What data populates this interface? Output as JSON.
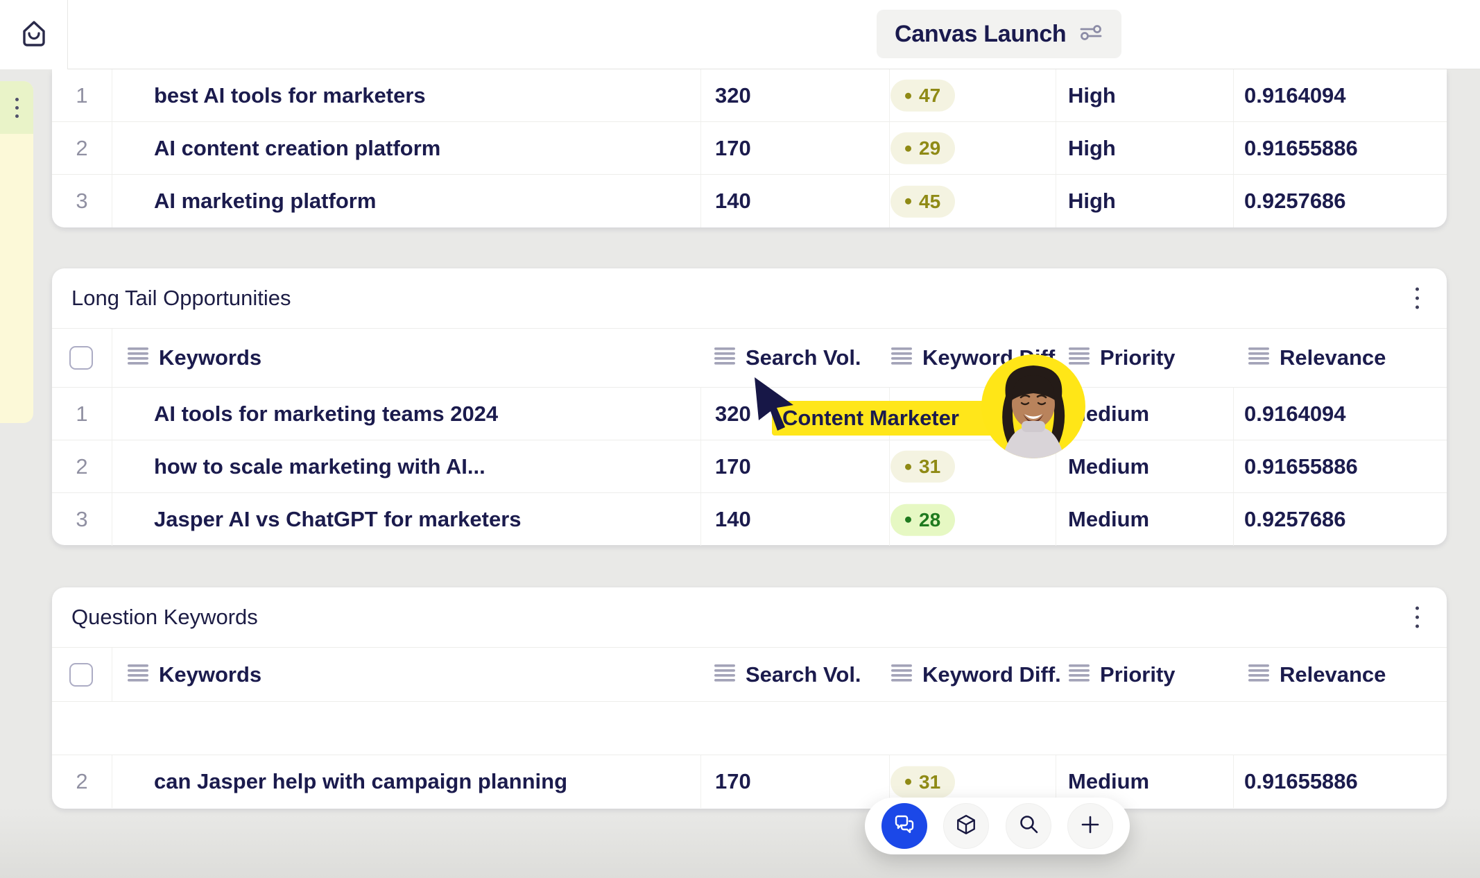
{
  "topbar": {
    "title": "Canvas Launch"
  },
  "columns": {
    "keywords": "Keywords",
    "search_vol": "Search Vol.",
    "keyword_diff": "Keyword Diff.",
    "priority": "Priority",
    "relevance": "Relevance"
  },
  "cursor_label": "Content Marketer",
  "tables": [
    {
      "id": "top",
      "title": "",
      "rows": [
        {
          "num": "1",
          "keyword": "best AI tools for marketers",
          "search_vol": "320",
          "diff": "47",
          "diff_color": "olive",
          "priority": "High",
          "relevance": "0.9164094"
        },
        {
          "num": "2",
          "keyword": "AI content creation platform",
          "search_vol": "170",
          "diff": "29",
          "diff_color": "olive",
          "priority": "High",
          "relevance": "0.91655886"
        },
        {
          "num": "3",
          "keyword": "AI marketing platform",
          "search_vol": "140",
          "diff": "45",
          "diff_color": "olive",
          "priority": "High",
          "relevance": "0.9257686"
        }
      ]
    },
    {
      "id": "long_tail",
      "title": "Long Tail Opportunities",
      "rows": [
        {
          "num": "1",
          "keyword": "AI tools for marketing teams 2024",
          "search_vol": "320",
          "diff": null,
          "diff_color": null,
          "priority": "Medium",
          "relevance": "0.9164094"
        },
        {
          "num": "2",
          "keyword": "how to scale marketing with AI...",
          "search_vol": "170",
          "diff": "31",
          "diff_color": "olive",
          "priority": "Medium",
          "relevance": "0.91655886"
        },
        {
          "num": "3",
          "keyword": "Jasper AI vs ChatGPT for marketers",
          "search_vol": "140",
          "diff": "28",
          "diff_color": "green",
          "priority": "Medium",
          "relevance": "0.9257686"
        }
      ]
    },
    {
      "id": "question",
      "title": "Question Keywords",
      "rows": [
        {
          "empty": true
        },
        {
          "num": "2",
          "keyword": "can Jasper help with campaign planning",
          "search_vol": "170",
          "diff": "31",
          "diff_color": "olive",
          "priority": "Medium",
          "relevance": "0.91655886"
        }
      ]
    }
  ],
  "toolbar": {
    "buttons": [
      {
        "icon": "chat-icon",
        "active": true
      },
      {
        "icon": "cube-icon",
        "active": false
      },
      {
        "icon": "search-icon",
        "active": false
      },
      {
        "icon": "plus-icon",
        "active": false
      }
    ]
  },
  "colors": {
    "accent_blue": "#1B48E8",
    "highlight_yellow": "#FFE61A",
    "text_navy": "#1B1B4D",
    "badge_olive_fg": "#8F8A15",
    "badge_green_fg": "#1F7A1F",
    "page_bg": "#E9E9E7"
  }
}
